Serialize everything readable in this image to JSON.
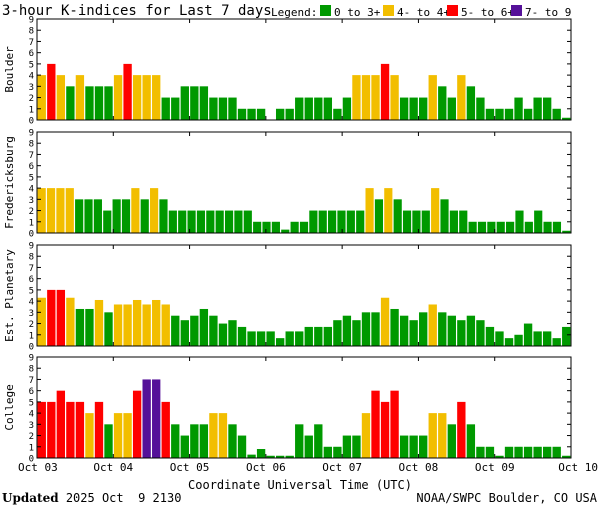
{
  "colors": {
    "k_0_3": "#009900",
    "k_4": "#f2be00",
    "k_5_6": "#ff0000",
    "k_7_9": "#551199",
    "axis": "#000000",
    "background": "#ffffff"
  },
  "chart_data": {
    "type": "bar",
    "title": "3-hour K-indices for Last 7 days",
    "legend": {
      "label": "Legend:",
      "placement": "top-right",
      "items": [
        {
          "label": "0 to 3+",
          "color": "#009900"
        },
        {
          "label": "4- to 4+",
          "color": "#f2be00"
        },
        {
          "label": "5- to 6+",
          "color": "#ff0000"
        },
        {
          "label": "7- to 9",
          "color": "#551199"
        }
      ]
    },
    "xlabel": "Coordinate Universal Time (UTC)",
    "x_ticks": [
      "Oct 03",
      "Oct 04",
      "Oct 05",
      "Oct 06",
      "Oct 07",
      "Oct 08",
      "Oct 09",
      "Oct 10"
    ],
    "ylim": [
      0,
      9
    ],
    "y_ticks": [
      "0",
      "1",
      "2",
      "3",
      "4",
      "5",
      "6",
      "7",
      "8",
      "9"
    ],
    "grid": false,
    "panels": [
      {
        "name": "Boulder",
        "values": [
          4,
          5,
          4,
          3,
          4,
          3,
          3,
          3,
          4,
          5,
          4,
          4,
          4,
          2,
          2,
          3,
          3,
          3,
          2,
          2,
          2,
          1,
          1,
          1,
          0,
          1,
          1,
          2,
          2,
          2,
          2,
          1,
          2,
          4,
          4,
          4,
          5,
          4,
          2,
          2,
          2,
          4,
          3,
          2,
          4,
          3,
          2,
          1,
          1,
          1,
          2,
          1,
          2,
          2,
          1,
          0.2
        ]
      },
      {
        "name": "Fredericksburg",
        "values": [
          4,
          4,
          4,
          4,
          3,
          3,
          3,
          2,
          3,
          3,
          4,
          3,
          4,
          3,
          2,
          2,
          2,
          2,
          2,
          2,
          2,
          2,
          2,
          1,
          1,
          1,
          0.3,
          1,
          1,
          2,
          2,
          2,
          2,
          2,
          2,
          4,
          3,
          4,
          3,
          2,
          2,
          2,
          4,
          3,
          2,
          2,
          1,
          1,
          1,
          1,
          1,
          2,
          1,
          2,
          1,
          1,
          0.2
        ]
      },
      {
        "name": "Est. Planetary",
        "values": [
          4.3,
          5,
          5,
          4.3,
          3.3,
          3.3,
          4.1,
          3,
          3.7,
          3.7,
          4.1,
          3.7,
          4.1,
          3.7,
          2.7,
          2.3,
          2.7,
          3.3,
          2.7,
          2,
          2.3,
          1.7,
          1.3,
          1.3,
          1.3,
          0.7,
          1.3,
          1.3,
          1.7,
          1.7,
          1.7,
          2.3,
          2.7,
          2.3,
          3,
          3,
          4.3,
          3.3,
          2.7,
          2.3,
          3,
          3.7,
          3,
          2.7,
          2.3,
          2.7,
          2.3,
          1.7,
          1.3,
          0.7,
          1,
          2,
          1.3,
          1.3,
          0.7,
          1.7
        ]
      },
      {
        "name": "College",
        "values": [
          5,
          5,
          6,
          5,
          5,
          4,
          5,
          3,
          4,
          4,
          6,
          7,
          7,
          5,
          3,
          2,
          3,
          3,
          4,
          4,
          3,
          2,
          0.3,
          0.8,
          0.2,
          0.2,
          0.2,
          3,
          2,
          3,
          1,
          1,
          2,
          2,
          4,
          6,
          5,
          6,
          2,
          2,
          2,
          4,
          4,
          3,
          5,
          3,
          1,
          1,
          0.2,
          1,
          1,
          1,
          1,
          1,
          1,
          0.2
        ]
      }
    ]
  },
  "footer": {
    "updated_label": "Updated",
    "updated_time": "2025 Oct  9 2130",
    "source": "NOAA/SWPC Boulder, CO USA"
  }
}
